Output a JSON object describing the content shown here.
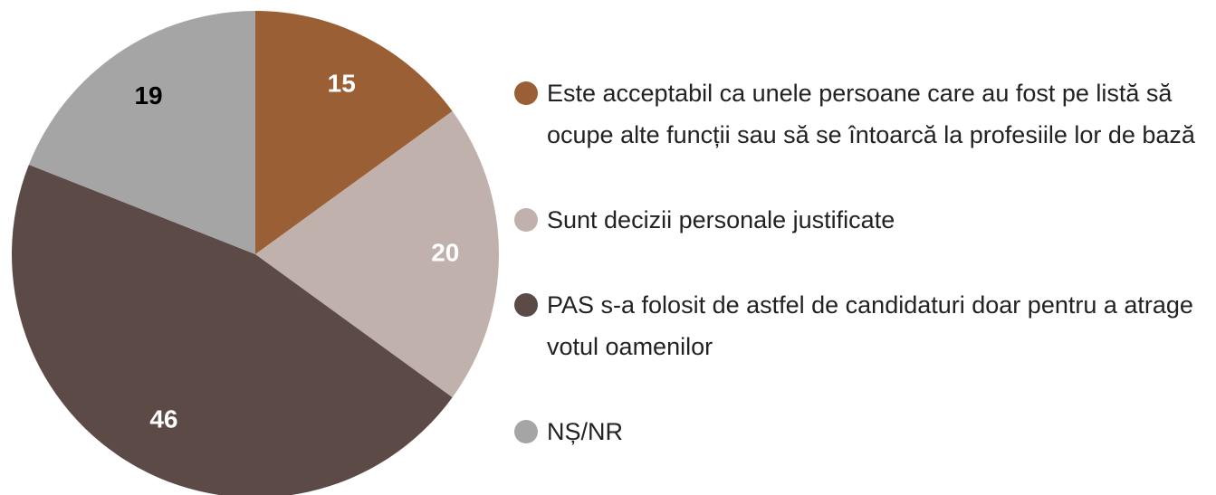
{
  "chart_data": {
    "type": "pie",
    "categories": [
      "Este acceptabil ca unele persoane care au fost pe listă să ocupe alte funcții sau să se întoarcă la profesiile lor de bază",
      "Sunt decizii personale justificate",
      "PAS s-a folosit de astfel de candidaturi doar pentru a atrage votul oamenilor",
      "NȘ/NR"
    ],
    "values": [
      15,
      20,
      46,
      19
    ],
    "colors": [
      "#9a5f34",
      "#c1b1ac",
      "#5c4a47",
      "#a5a5a5"
    ],
    "label_colors": [
      "#ffffff",
      "#ffffff",
      "#ffffff",
      "#000000"
    ],
    "legend": "right"
  }
}
